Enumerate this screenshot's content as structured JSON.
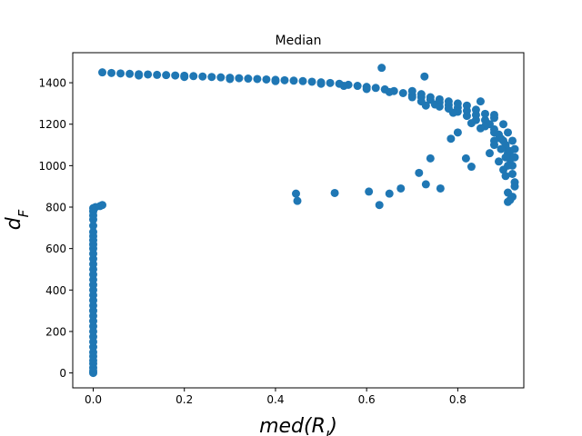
{
  "chart_data": {
    "type": "scatter",
    "title": "Median",
    "xlabel": "med(R_I)",
    "ylabel": "d_F",
    "xlim": [
      -0.0449,
      0.9449
    ],
    "ylim": [
      -72,
      1545
    ],
    "xticks": [
      0.0,
      0.2,
      0.4,
      0.6,
      0.8
    ],
    "xtick_labels": [
      "0.0",
      "0.2",
      "0.4",
      "0.6",
      "0.8"
    ],
    "yticks": [
      0,
      200,
      400,
      600,
      800,
      1000,
      1200,
      1400
    ],
    "ytick_labels": [
      "0",
      "200",
      "400",
      "600",
      "800",
      "1000",
      "1200",
      "1400"
    ],
    "grid": false,
    "marker_color": "#1f77b4",
    "series": [
      {
        "points": [
          [
            0.0,
            0
          ],
          [
            0.0,
            10
          ],
          [
            0.0,
            25
          ],
          [
            0.0,
            45
          ],
          [
            0.0,
            60
          ],
          [
            0.0,
            80
          ],
          [
            0.0,
            100
          ],
          [
            0.0,
            125
          ],
          [
            0.0,
            150
          ],
          [
            0.0,
            175
          ],
          [
            0.0,
            200
          ],
          [
            0.0,
            225
          ],
          [
            0.0,
            250
          ],
          [
            0.0,
            275
          ],
          [
            0.0,
            300
          ],
          [
            0.0,
            325
          ],
          [
            0.0,
            350
          ],
          [
            0.0,
            375
          ],
          [
            0.0,
            400
          ],
          [
            0.0,
            425
          ],
          [
            0.0,
            450
          ],
          [
            0.0,
            475
          ],
          [
            0.0,
            500
          ],
          [
            0.0,
            525
          ],
          [
            0.0,
            550
          ],
          [
            0.0,
            575
          ],
          [
            0.0,
            600
          ],
          [
            0.0,
            620
          ],
          [
            0.0,
            640
          ],
          [
            0.0,
            660
          ],
          [
            0.0,
            680
          ],
          [
            0.0,
            710
          ],
          [
            0.0,
            740
          ],
          [
            0.0,
            760
          ],
          [
            0.0,
            780
          ],
          [
            0.0,
            795
          ],
          [
            0.005,
            800
          ],
          [
            0.015,
            805
          ],
          [
            0.02,
            810
          ],
          [
            0.02,
            1450
          ],
          [
            0.04,
            1447
          ],
          [
            0.06,
            1445
          ],
          [
            0.08,
            1443
          ],
          [
            0.1,
            1441
          ],
          [
            0.12,
            1440
          ],
          [
            0.14,
            1438
          ],
          [
            0.16,
            1437
          ],
          [
            0.18,
            1435
          ],
          [
            0.2,
            1434
          ],
          [
            0.22,
            1432
          ],
          [
            0.24,
            1430
          ],
          [
            0.26,
            1428
          ],
          [
            0.28,
            1426
          ],
          [
            0.3,
            1424
          ],
          [
            0.32,
            1422
          ],
          [
            0.34,
            1420
          ],
          [
            0.36,
            1418
          ],
          [
            0.38,
            1416
          ],
          [
            0.4,
            1414
          ],
          [
            0.42,
            1412
          ],
          [
            0.44,
            1410
          ],
          [
            0.46,
            1408
          ],
          [
            0.48,
            1405
          ],
          [
            0.5,
            1402
          ],
          [
            0.52,
            1399
          ],
          [
            0.54,
            1395
          ],
          [
            0.56,
            1390
          ],
          [
            0.58,
            1385
          ],
          [
            0.6,
            1380
          ],
          [
            0.62,
            1375
          ],
          [
            0.64,
            1368
          ],
          [
            0.66,
            1360
          ],
          [
            0.68,
            1350
          ],
          [
            0.7,
            1340
          ],
          [
            0.72,
            1330
          ],
          [
            0.74,
            1318
          ],
          [
            0.76,
            1305
          ],
          [
            0.78,
            1292
          ],
          [
            0.8,
            1280
          ],
          [
            0.82,
            1265
          ],
          [
            0.84,
            1245
          ],
          [
            0.86,
            1220
          ],
          [
            0.87,
            1200
          ],
          [
            0.88,
            1175
          ],
          [
            0.89,
            1150
          ],
          [
            0.9,
            1120
          ],
          [
            0.905,
            1090
          ],
          [
            0.91,
            1060
          ],
          [
            0.915,
            1030
          ],
          [
            0.92,
            1000
          ],
          [
            0.1,
            1435
          ],
          [
            0.2,
            1428
          ],
          [
            0.3,
            1418
          ],
          [
            0.4,
            1408
          ],
          [
            0.5,
            1395
          ],
          [
            0.55,
            1385
          ],
          [
            0.6,
            1370
          ],
          [
            0.65,
            1355
          ],
          [
            0.7,
            1330
          ],
          [
            0.72,
            1310
          ],
          [
            0.75,
            1295
          ],
          [
            0.78,
            1275
          ],
          [
            0.8,
            1260
          ],
          [
            0.82,
            1240
          ],
          [
            0.84,
            1220
          ],
          [
            0.86,
            1190
          ],
          [
            0.88,
            1160
          ],
          [
            0.895,
            1130
          ],
          [
            0.905,
            1100
          ],
          [
            0.915,
            1070
          ],
          [
            0.7,
            1360
          ],
          [
            0.72,
            1345
          ],
          [
            0.74,
            1330
          ],
          [
            0.76,
            1320
          ],
          [
            0.78,
            1310
          ],
          [
            0.8,
            1300
          ],
          [
            0.82,
            1290
          ],
          [
            0.84,
            1270
          ],
          [
            0.86,
            1250
          ],
          [
            0.88,
            1230
          ],
          [
            0.9,
            1200
          ],
          [
            0.91,
            1160
          ],
          [
            0.92,
            1120
          ],
          [
            0.925,
            1080
          ],
          [
            0.925,
            1040
          ],
          [
            0.73,
            1290
          ],
          [
            0.76,
            1285
          ],
          [
            0.79,
            1255
          ],
          [
            0.83,
            1205
          ],
          [
            0.85,
            1180
          ],
          [
            0.88,
            1120
          ],
          [
            0.895,
            1080
          ],
          [
            0.905,
            1040
          ],
          [
            0.91,
            1000
          ],
          [
            0.9,
            980
          ],
          [
            0.89,
            1020
          ],
          [
            0.87,
            1060
          ],
          [
            0.88,
            1100
          ],
          [
            0.92,
            960
          ],
          [
            0.925,
            920
          ],
          [
            0.925,
            900
          ],
          [
            0.91,
            870
          ],
          [
            0.92,
            850
          ],
          [
            0.91,
            825
          ],
          [
            0.915,
            835
          ],
          [
            0.905,
            950
          ],
          [
            0.633,
            1472
          ],
          [
            0.727,
            1430
          ],
          [
            0.85,
            1310
          ],
          [
            0.88,
            1245
          ],
          [
            0.8,
            1160
          ],
          [
            0.785,
            1130
          ],
          [
            0.818,
            1035
          ],
          [
            0.83,
            995
          ],
          [
            0.74,
            1035
          ],
          [
            0.715,
            965
          ],
          [
            0.73,
            910
          ],
          [
            0.762,
            890
          ],
          [
            0.675,
            890
          ],
          [
            0.605,
            875
          ],
          [
            0.65,
            865
          ],
          [
            0.628,
            810
          ],
          [
            0.53,
            868
          ],
          [
            0.445,
            865
          ],
          [
            0.448,
            830
          ]
        ]
      }
    ]
  }
}
